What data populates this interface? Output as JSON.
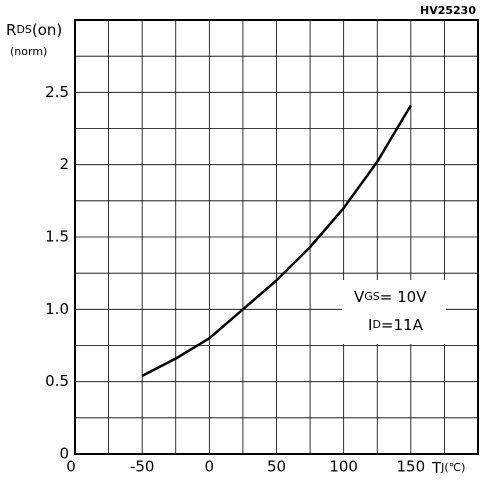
{
  "chart_data": {
    "type": "line",
    "code": "HV25230",
    "ylabel": {
      "main": "R",
      "sub": "DS",
      "rest": "(on)",
      "line2": "(norm)"
    },
    "xlabel": {
      "main": "T",
      "sub": "J",
      "rest": "(℃)"
    },
    "annotations": [
      {
        "main": "V",
        "sub": "GS",
        "rest": "= 10V"
      },
      {
        "main": "I",
        "sub": "D",
        "rest": "=11A"
      }
    ],
    "origin_label": "0",
    "x": [
      -50,
      -25,
      0,
      25,
      50,
      75,
      100,
      125,
      150
    ],
    "series": [
      {
        "color": "#000000",
        "values": [
          0.54,
          0.66,
          0.8,
          1.0,
          1.2,
          1.43,
          1.7,
          2.02,
          2.41
        ]
      }
    ],
    "xlim": [
      -100,
      200
    ],
    "xticks": [
      -50,
      0,
      50,
      100,
      150
    ],
    "xminor": [
      -75,
      -25,
      25,
      75,
      125,
      175
    ],
    "ylim": [
      0,
      3
    ],
    "yticks": [
      0,
      0.5,
      {
        "value": 1,
        "label": "1.0"
      },
      1.5,
      2,
      2.5
    ],
    "yminor": [
      0.25,
      0.75,
      1.25,
      1.75,
      2.25,
      2.75
    ],
    "grid": true
  }
}
